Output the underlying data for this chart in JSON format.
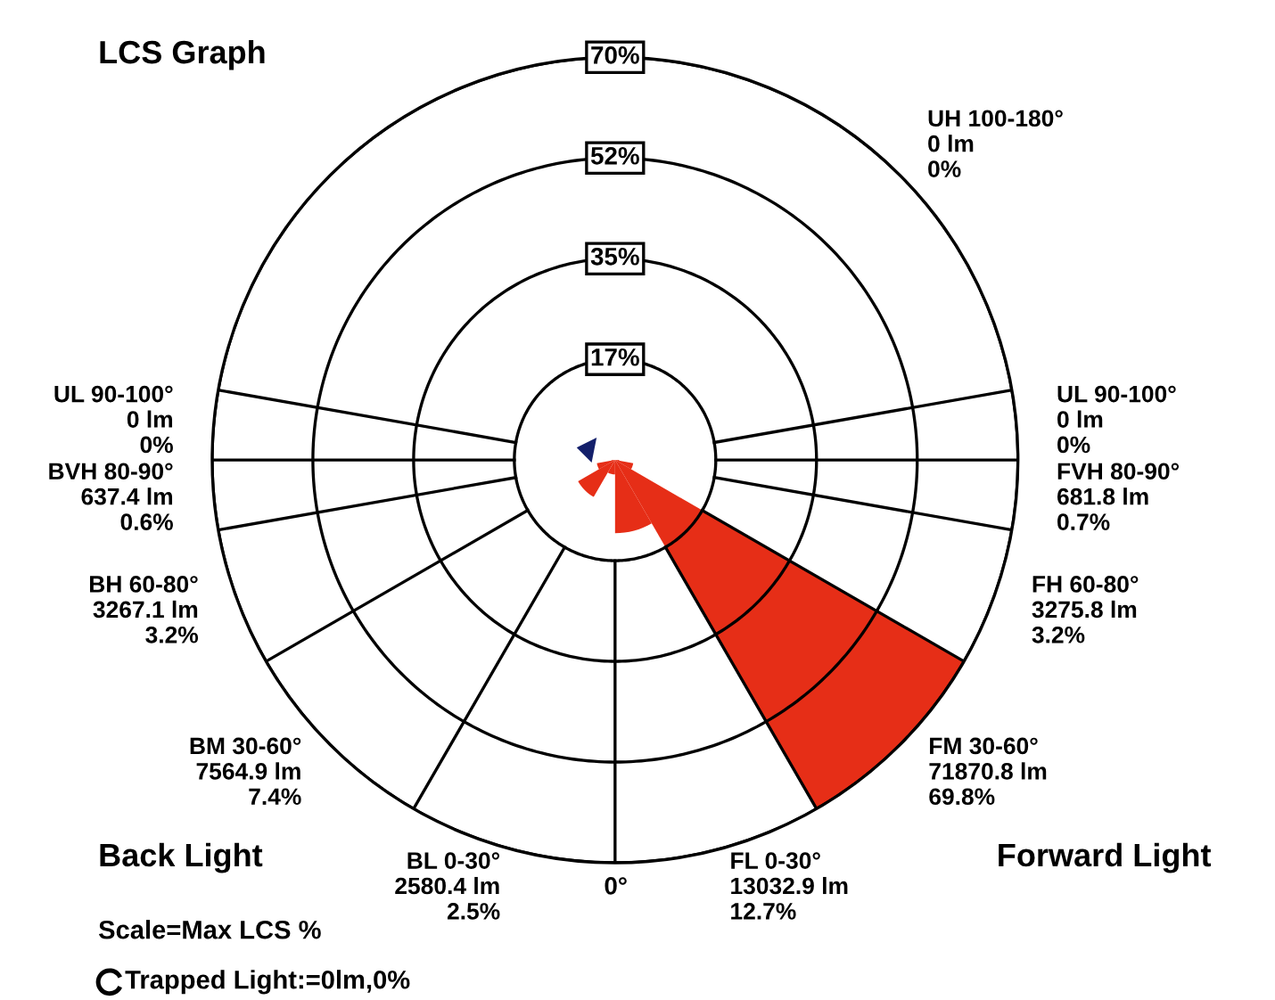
{
  "chart_data": {
    "type": "other",
    "title": "LCS Graph",
    "categories": [
      "FL 0-30°",
      "FM 30-60°",
      "FH 60-80°",
      "FVH 80-90°",
      "UL 90-100°",
      "UH 100-180°",
      "UL 90-100°",
      "BVH 80-90°",
      "BH 60-80°",
      "BM 30-60°",
      "BL 0-30°"
    ],
    "values": [
      12.7,
      69.8,
      3.2,
      0.7,
      0,
      0,
      0,
      0.6,
      3.2,
      7.4,
      2.5
    ],
    "value_labels": [
      "13032.9 lm\n12.7%",
      "71870.8 lm\n69.8%",
      "3275.8 lm\n3.2%",
      "681.8 lm\n0.7%",
      "0 lm\n0%",
      "0 lm\n0%",
      "0 lm\n0%",
      "637.4 lm\n0.6%",
      "3267.1 lm\n3.2%",
      "7564.9 lm\n7.4%",
      "2580.4 lm\n2.5%"
    ],
    "color": "#e62e17",
    "annotations": [
      "17%",
      "35%",
      "52%",
      "70%",
      "0°",
      "Back Light",
      "Forward Light",
      "Scale=Max LCS %",
      "Trapped Light:=0lm,0%"
    ]
  }
}
